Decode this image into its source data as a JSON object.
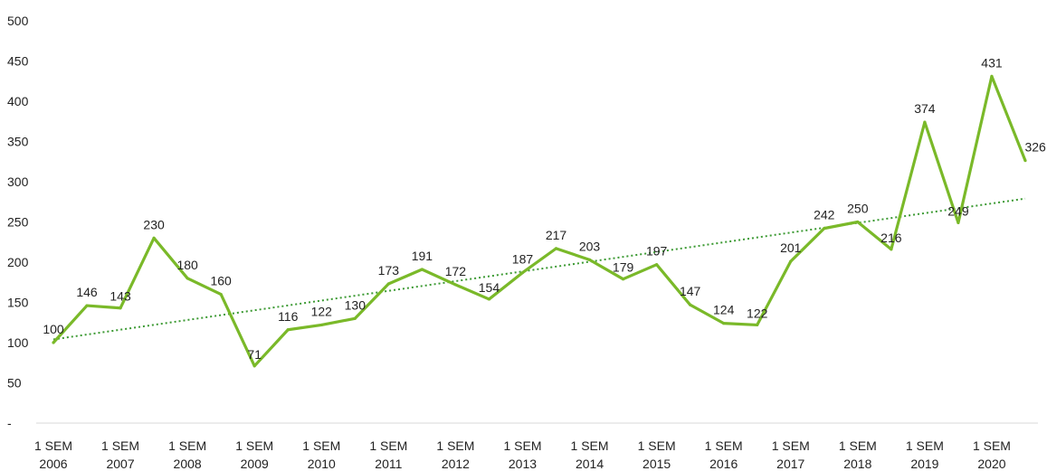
{
  "chart_data": {
    "type": "line",
    "title": "",
    "xlabel": "",
    "ylabel": "",
    "ylim": [
      0,
      500
    ],
    "y_ticks": [
      "-",
      "50",
      "100",
      "150",
      "200",
      "250",
      "300",
      "350",
      "400",
      "450",
      "500"
    ],
    "x_labels": [
      {
        "index": 0,
        "line1": "1 SEM",
        "line2": "2006"
      },
      {
        "index": 2,
        "line1": "1 SEM",
        "line2": "2007"
      },
      {
        "index": 4,
        "line1": "1 SEM",
        "line2": "2008"
      },
      {
        "index": 6,
        "line1": "1 SEM",
        "line2": "2009"
      },
      {
        "index": 8,
        "line1": "1 SEM",
        "line2": "2010"
      },
      {
        "index": 10,
        "line1": "1 SEM",
        "line2": "2011"
      },
      {
        "index": 12,
        "line1": "1 SEM",
        "line2": "2012"
      },
      {
        "index": 14,
        "line1": "1 SEM",
        "line2": "2013"
      },
      {
        "index": 16,
        "line1": "1 SEM",
        "line2": "2014"
      },
      {
        "index": 18,
        "line1": "1 SEM",
        "line2": "2015"
      },
      {
        "index": 20,
        "line1": "1 SEM",
        "line2": "2016"
      },
      {
        "index": 22,
        "line1": "1 SEM",
        "line2": "2017"
      },
      {
        "index": 24,
        "line1": "1 SEM",
        "line2": "2018"
      },
      {
        "index": 26,
        "line1": "1 SEM",
        "line2": "2019"
      },
      {
        "index": 28,
        "line1": "1 SEM",
        "line2": "2020"
      }
    ],
    "series": [
      {
        "values": [
          100,
          146,
          143,
          230,
          180,
          160,
          71,
          116,
          122,
          130,
          173,
          191,
          172,
          154,
          187,
          217,
          203,
          179,
          197,
          147,
          124,
          122,
          201,
          242,
          250,
          216,
          374,
          249,
          431,
          326.2
        ],
        "data_labels": [
          "100",
          "146",
          "143",
          "230",
          "180",
          "160",
          "71",
          "116",
          "122",
          "130",
          "173",
          "191",
          "172",
          "154",
          "187",
          "217",
          "203",
          "179",
          "197",
          "147",
          "124",
          "122",
          "201",
          "242",
          "250",
          "216",
          "374",
          "249",
          "431",
          "326,2"
        ],
        "color": "#7ab929"
      }
    ],
    "trendline": {
      "type": "linear",
      "style": "dotted",
      "color": "#3c9a33",
      "start": 104,
      "end": 279
    },
    "grid": false,
    "legend": "none"
  }
}
